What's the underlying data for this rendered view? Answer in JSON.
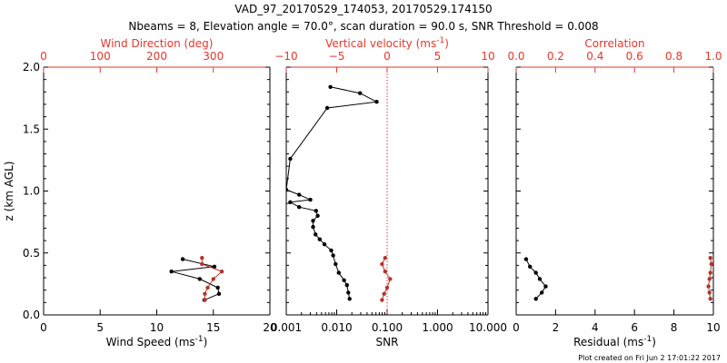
{
  "title_line1": "VAD_97_20170529_174053, 20170529.174150",
  "title_line2": "Nbeams = 8, Elevation angle = 70.0°, scan duration = 90.0 s, SNR Threshold = 0.008",
  "footer": "Plot created on Fri Jun  2 17:01:22 2017",
  "colors": {
    "axis": "#000000",
    "accent": "#e8362c",
    "red_series": "#b5342a",
    "black_series": "#000000"
  },
  "chart_data": [
    {
      "type": "line",
      "panel": "left",
      "ylabel": "z (km AGL)",
      "ylim": [
        0,
        2
      ],
      "yticks": [
        0,
        0.5,
        1,
        1.5,
        2
      ],
      "ytick_labels": [
        "0.0",
        "0.5",
        "1.0",
        "1.5",
        "2.0"
      ],
      "bottom_axis": {
        "label": "Wind Speed (ms⁻¹)",
        "range": [
          0,
          20
        ],
        "ticks": [
          0,
          5,
          10,
          15,
          20
        ],
        "tick_labels": [
          "0",
          "5",
          "10",
          "15",
          "20"
        ]
      },
      "top_axis": {
        "label": "Wind Direction (deg)",
        "range": [
          0,
          400
        ],
        "ticks": [
          0,
          100,
          200,
          300
        ],
        "tick_labels": [
          "0",
          "100",
          "200",
          "300"
        ]
      },
      "series": [
        {
          "axis": "bottom",
          "color": "#000000",
          "x": [
            14.2,
            15.5,
            15.4,
            13.8,
            11.3,
            15.1,
            12.3
          ],
          "y": [
            0.12,
            0.17,
            0.22,
            0.29,
            0.35,
            0.39,
            0.45
          ]
        },
        {
          "axis": "top",
          "color": "#b5342a",
          "x": [
            285,
            285,
            290,
            300,
            315,
            280,
            280
          ],
          "y": [
            0.12,
            0.17,
            0.22,
            0.29,
            0.35,
            0.41,
            0.46
          ]
        }
      ]
    },
    {
      "type": "line",
      "panel": "middle",
      "bottom_axis": {
        "label": "SNR",
        "scale": "log",
        "range": [
          0.001,
          10
        ],
        "ticks": [
          0.001,
          0.01,
          0.1,
          1,
          10
        ],
        "tick_labels": [
          "0.001",
          "0.010",
          "0.100",
          "1.000",
          "10.000"
        ]
      },
      "top_axis": {
        "label": "Vertical velocity (ms⁻¹)",
        "range": [
          -10,
          10
        ],
        "ticks": [
          -10,
          -5,
          0,
          5,
          10
        ],
        "tick_labels": [
          "−10",
          "−5",
          "0",
          "5",
          "10"
        ],
        "zero_line": "dotted"
      },
      "series": [
        {
          "axis": "bottom",
          "color": "#000000",
          "x": [
            0.018,
            0.017,
            0.016,
            0.014,
            0.011,
            0.0095,
            0.0085,
            0.0078,
            0.0057,
            0.0046,
            0.0038,
            0.0034,
            0.0034,
            0.0042,
            0.0039,
            0.0018,
            0.0012,
            0.003,
            0.0018,
            0.001,
            0.0012,
            0.0065,
            0.062,
            0.029,
            0.0075
          ],
          "y": [
            0.13,
            0.18,
            0.24,
            0.28,
            0.34,
            0.41,
            0.48,
            0.52,
            0.57,
            0.61,
            0.65,
            0.71,
            0.76,
            0.8,
            0.84,
            0.87,
            0.91,
            0.93,
            0.97,
            1.01,
            1.26,
            1.67,
            1.72,
            1.79,
            1.84
          ]
        },
        {
          "axis": "top",
          "color": "#b5342a",
          "x": [
            -0.5,
            -0.3,
            0,
            0.3,
            -0.2,
            -0.5,
            -0.2
          ],
          "y": [
            0.12,
            0.17,
            0.22,
            0.29,
            0.35,
            0.41,
            0.46
          ]
        }
      ]
    },
    {
      "type": "line",
      "panel": "right",
      "bottom_axis": {
        "label": "Residual (ms⁻¹)",
        "range": [
          0,
          10
        ],
        "ticks": [
          0,
          2,
          4,
          6,
          8,
          10
        ],
        "tick_labels": [
          "0",
          "2",
          "4",
          "6",
          "8",
          "10"
        ]
      },
      "top_axis": {
        "label": "Correlation",
        "range": [
          0,
          1
        ],
        "ticks": [
          0,
          0.2,
          0.4,
          0.6,
          0.8,
          1
        ],
        "tick_labels": [
          "0.0",
          "0.2",
          "0.4",
          "0.6",
          "0.8",
          "1.0"
        ]
      },
      "series": [
        {
          "axis": "bottom",
          "color": "#000000",
          "x": [
            1.0,
            1.3,
            1.5,
            1.2,
            1.0,
            0.7,
            0.5
          ],
          "y": [
            0.13,
            0.18,
            0.23,
            0.29,
            0.34,
            0.39,
            0.45
          ]
        },
        {
          "axis": "top",
          "color": "#b5342a",
          "x": [
            0.985,
            0.98,
            0.975,
            0.98,
            0.985,
            0.99,
            0.985
          ],
          "y": [
            0.13,
            0.18,
            0.23,
            0.29,
            0.34,
            0.41,
            0.46
          ]
        }
      ]
    }
  ]
}
